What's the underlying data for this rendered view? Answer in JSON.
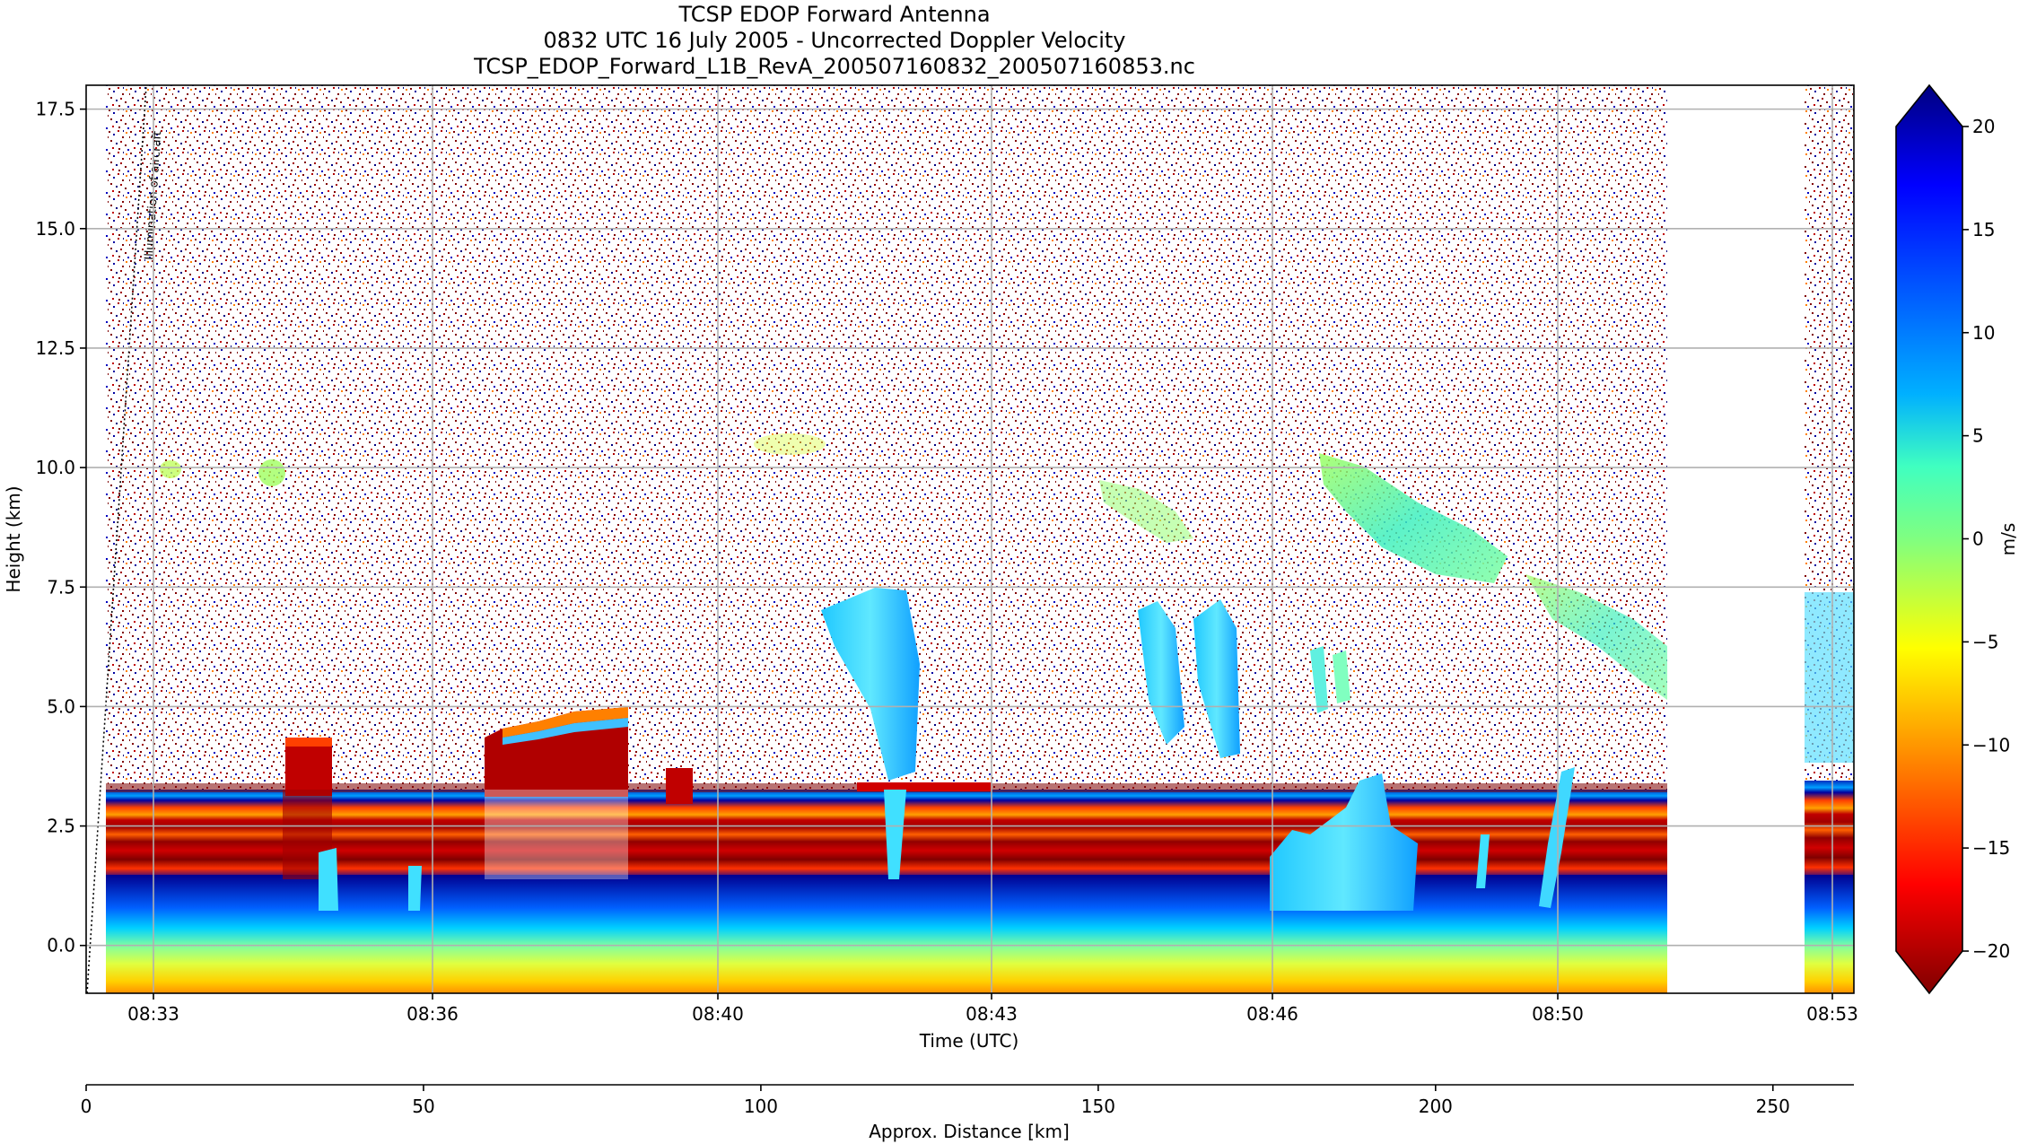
{
  "chart_data": {
    "type": "heatmap",
    "title_lines": [
      "TCSP EDOP Forward Antenna",
      "0832 UTC 16 July 2005 - Uncorrected Doppler Velocity",
      "TCSP_EDOP_Forward_L1B_RevA_200507160832_200507160853.nc"
    ],
    "xlabel": "Time (UTC)",
    "ylabel": "Height (km)",
    "x2label": "Approx. Distance [km]",
    "x_ticks": [
      "08:33",
      "08:36",
      "08:40",
      "08:43",
      "08:46",
      "08:50",
      "08:53"
    ],
    "y_ticks": [
      "0.0",
      "2.5",
      "5.0",
      "7.5",
      "10.0",
      "12.5",
      "15.0",
      "17.5"
    ],
    "x2_ticks": [
      "0",
      "50",
      "100",
      "150",
      "200",
      "250"
    ],
    "ylim": [
      -1.0,
      18.0
    ],
    "x2lim": [
      0,
      262
    ],
    "colorbar": {
      "label": "m/s",
      "ticks": [
        "20",
        "15",
        "10",
        "5",
        "0",
        "−5",
        "−10",
        "−15",
        "−20"
      ],
      "range": [
        -20,
        20
      ],
      "colormap": "jet_r",
      "colors": [
        "#800000",
        "#ff0000",
        "#ff8000",
        "#ffff00",
        "#80ff80",
        "#00ffff",
        "#0080ff",
        "#0000ff",
        "#000080"
      ]
    },
    "annotation": "Illumination of aircraft",
    "grid": true,
    "data_gap": "after 08:51 until about 08:53",
    "layers": [
      {
        "feature": "surface return",
        "height_km": [
          -1.0,
          0.3
        ]
      },
      {
        "feature": "sidelobe / multi-trip bands",
        "height_km": [
          1.3,
          3.3
        ]
      },
      {
        "feature": "noise above",
        "height_km": [
          3.3,
          18.0
        ]
      }
    ]
  }
}
